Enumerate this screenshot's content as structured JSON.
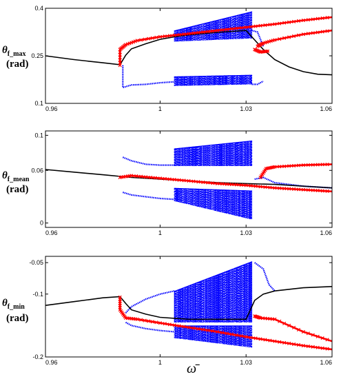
{
  "colors": {
    "stable": "#000000",
    "chaotic": "#0000ff",
    "alternate": "#ff0000",
    "frame": "#000000",
    "background": "#ffffff"
  },
  "figure": {
    "xlabel": "ω̄"
  },
  "chart_data": [
    {
      "type": "scatter",
      "ylabel": {
        "symbol": "θ",
        "subscript": "f_max",
        "unit": "(rad)"
      },
      "xlim": [
        0.96,
        1.06
      ],
      "ylim": [
        0.1,
        0.4
      ],
      "xticks": [
        0.96,
        1,
        1.03,
        1.06
      ],
      "xtick_labels": [
        "0.96",
        "1",
        "1.03",
        "1.06"
      ],
      "yticks": [
        0.1,
        0.25,
        0.4
      ],
      "ytick_labels": [
        "0.1",
        "0.25",
        "0.4"
      ],
      "series": [
        {
          "role": "stable",
          "points": [
            [
              0.96,
              0.25
            ],
            [
              0.97,
              0.238
            ],
            [
              0.98,
              0.228
            ],
            [
              0.986,
              0.222
            ],
            [
              0.988,
              0.252
            ],
            [
              0.99,
              0.272
            ],
            [
              0.995,
              0.288
            ],
            [
              1.0,
              0.302
            ],
            [
              1.005,
              0.31
            ],
            [
              1.01,
              0.316
            ],
            [
              1.02,
              0.324
            ],
            [
              1.03,
              0.33
            ],
            [
              1.033,
              0.3
            ],
            [
              1.036,
              0.27
            ],
            [
              1.04,
              0.238
            ],
            [
              1.045,
              0.215
            ],
            [
              1.05,
              0.2
            ],
            [
              1.055,
              0.192
            ],
            [
              1.06,
              0.19
            ]
          ]
        },
        {
          "role": "chaotic_band_upper",
          "x_range": [
            1.005,
            1.032
          ],
          "y_bottom": [
            0.295,
            0.305
          ],
          "y_top": [
            0.33,
            0.39
          ]
        },
        {
          "role": "chaotic_band_lower",
          "x_range": [
            1.005,
            1.032
          ],
          "y_bottom": [
            0.155,
            0.16
          ],
          "y_top": [
            0.185,
            0.19
          ]
        },
        {
          "role": "chaotic_edge",
          "points": [
            [
              0.987,
              0.22
            ],
            [
              0.987,
              0.15
            ],
            [
              0.99,
              0.158
            ],
            [
              0.995,
              0.16
            ],
            [
              1.0,
              0.165
            ],
            [
              1.005,
              0.168
            ]
          ]
        },
        {
          "role": "chaotic_edge",
          "points": [
            [
              1.032,
              0.16
            ],
            [
              1.034,
              0.16
            ],
            [
              1.036,
              0.17
            ]
          ]
        },
        {
          "role": "chaotic_edge",
          "points": [
            [
              1.032,
              0.33
            ],
            [
              1.034,
              0.325
            ],
            [
              1.036,
              0.28
            ]
          ]
        },
        {
          "role": "alternate",
          "points": [
            [
              0.986,
              0.22
            ],
            [
              0.986,
              0.27
            ],
            [
              0.988,
              0.285
            ],
            [
              0.992,
              0.298
            ],
            [
              1.0,
              0.31
            ],
            [
              1.01,
              0.32
            ],
            [
              1.02,
              0.33
            ],
            [
              1.03,
              0.34
            ],
            [
              1.04,
              0.35
            ],
            [
              1.05,
              0.362
            ],
            [
              1.06,
              0.372
            ]
          ]
        },
        {
          "role": "alternate",
          "points": [
            [
              1.033,
              0.27
            ],
            [
              1.035,
              0.262
            ],
            [
              1.038,
              0.265
            ]
          ]
        },
        {
          "role": "alternate",
          "points": [
            [
              1.034,
              0.28
            ],
            [
              1.036,
              0.29
            ],
            [
              1.04,
              0.3
            ],
            [
              1.05,
              0.318
            ],
            [
              1.06,
              0.33
            ]
          ]
        }
      ]
    },
    {
      "type": "scatter",
      "ylabel": {
        "symbol": "θ",
        "subscript": "f_mean",
        "unit": "(rad)"
      },
      "xlim": [
        0.96,
        1.06
      ],
      "ylim": [
        -0.005,
        0.105
      ],
      "xticks": [
        0.96,
        1,
        1.03,
        1.06
      ],
      "xtick_labels": [
        "0.96",
        "1",
        "1.03",
        "1.06"
      ],
      "yticks": [
        0,
        0.06,
        0.1
      ],
      "ytick_labels": [
        "0",
        "0.06",
        "0.1"
      ],
      "series": [
        {
          "role": "stable",
          "points": [
            [
              0.96,
              0.061
            ],
            [
              0.97,
              0.058
            ],
            [
              0.98,
              0.055
            ],
            [
              0.99,
              0.052
            ],
            [
              1.0,
              0.05
            ],
            [
              1.01,
              0.048
            ],
            [
              1.02,
              0.046
            ],
            [
              1.03,
              0.045
            ],
            [
              1.04,
              0.044
            ],
            [
              1.05,
              0.042
            ],
            [
              1.06,
              0.04
            ]
          ]
        },
        {
          "role": "chaotic_band_upper",
          "x_range": [
            1.005,
            1.032
          ],
          "y_bottom": [
            0.065,
            0.065
          ],
          "y_top": [
            0.085,
            0.094
          ]
        },
        {
          "role": "chaotic_band_lower",
          "x_range": [
            1.005,
            1.032
          ],
          "y_bottom": [
            0.025,
            0.004
          ],
          "y_top": [
            0.04,
            0.037
          ]
        },
        {
          "role": "chaotic_edge",
          "points": [
            [
              0.987,
              0.075
            ],
            [
              0.99,
              0.071
            ],
            [
              0.995,
              0.067
            ],
            [
              1.0,
              0.066
            ],
            [
              1.005,
              0.066
            ]
          ]
        },
        {
          "role": "chaotic_edge",
          "points": [
            [
              0.987,
              0.035
            ],
            [
              0.99,
              0.032
            ],
            [
              0.995,
              0.03
            ],
            [
              1.0,
              0.028
            ],
            [
              1.005,
              0.027
            ]
          ]
        },
        {
          "role": "chaotic_edge",
          "points": [
            [
              1.033,
              0.05
            ],
            [
              1.036,
              0.052
            ],
            [
              1.04,
              0.046
            ],
            [
              1.05,
              0.042
            ],
            [
              1.06,
              0.04
            ]
          ]
        },
        {
          "role": "alternate",
          "points": [
            [
              0.986,
              0.052
            ],
            [
              0.99,
              0.054
            ],
            [
              1.0,
              0.051
            ],
            [
              1.01,
              0.048
            ],
            [
              1.02,
              0.045
            ],
            [
              1.03,
              0.043
            ],
            [
              1.04,
              0.04
            ],
            [
              1.05,
              0.038
            ],
            [
              1.06,
              0.036
            ]
          ]
        },
        {
          "role": "alternate",
          "points": [
            [
              1.035,
              0.052
            ],
            [
              1.037,
              0.062
            ],
            [
              1.04,
              0.064
            ],
            [
              1.05,
              0.066
            ],
            [
              1.06,
              0.067
            ]
          ]
        }
      ]
    },
    {
      "type": "scatter",
      "ylabel": {
        "symbol": "θ",
        "subscript": "f_min",
        "unit": "(rad)"
      },
      "xlim": [
        0.96,
        1.06
      ],
      "ylim": [
        -0.2,
        -0.04
      ],
      "xticks": [
        0.96,
        1,
        1.03,
        1.06
      ],
      "xtick_labels": [
        "0.96",
        "1",
        "1.03",
        "1.06"
      ],
      "yticks": [
        -0.05,
        -0.1,
        -0.2
      ],
      "ytick_labels": [
        "-0.05",
        "-0.1",
        "-0.2"
      ],
      "series": [
        {
          "role": "stable",
          "points": [
            [
              0.96,
              -0.118
            ],
            [
              0.97,
              -0.112
            ],
            [
              0.98,
              -0.106
            ],
            [
              0.986,
              -0.104
            ],
            [
              0.988,
              -0.115
            ],
            [
              0.99,
              -0.125
            ],
            [
              0.995,
              -0.132
            ],
            [
              1.0,
              -0.137
            ],
            [
              1.01,
              -0.14
            ],
            [
              1.03,
              -0.14
            ],
            [
              1.033,
              -0.11
            ],
            [
              1.036,
              -0.1
            ],
            [
              1.04,
              -0.095
            ],
            [
              1.05,
              -0.09
            ],
            [
              1.06,
              -0.088
            ]
          ]
        },
        {
          "role": "chaotic_band_upper",
          "x_range": [
            1.005,
            1.032
          ],
          "y_bottom": [
            -0.145,
            -0.145
          ],
          "y_top": [
            -0.095,
            -0.048
          ]
        },
        {
          "role": "chaotic_band_lower",
          "x_range": [
            1.005,
            1.032
          ],
          "y_bottom": [
            -0.17,
            -0.185
          ],
          "y_top": [
            -0.15,
            -0.15
          ]
        },
        {
          "role": "chaotic_edge",
          "points": [
            [
              0.988,
              -0.13
            ],
            [
              0.99,
              -0.12
            ],
            [
              0.995,
              -0.108
            ],
            [
              1.0,
              -0.1
            ],
            [
              1.005,
              -0.095
            ]
          ]
        },
        {
          "role": "chaotic_edge",
          "points": [
            [
              0.988,
              -0.145
            ],
            [
              0.99,
              -0.15
            ],
            [
              0.995,
              -0.155
            ],
            [
              1.0,
              -0.158
            ],
            [
              1.005,
              -0.16
            ]
          ]
        },
        {
          "role": "chaotic_edge",
          "points": [
            [
              1.033,
              -0.05
            ],
            [
              1.036,
              -0.06
            ],
            [
              1.038,
              -0.085
            ],
            [
              1.04,
              -0.095
            ]
          ]
        },
        {
          "role": "alternate",
          "points": [
            [
              0.986,
              -0.105
            ],
            [
              0.986,
              -0.125
            ],
            [
              0.988,
              -0.138
            ],
            [
              0.992,
              -0.14
            ],
            [
              1.0,
              -0.146
            ],
            [
              1.01,
              -0.153
            ],
            [
              1.02,
              -0.16
            ],
            [
              1.03,
              -0.168
            ],
            [
              1.04,
              -0.175
            ],
            [
              1.05,
              -0.182
            ],
            [
              1.06,
              -0.188
            ]
          ]
        },
        {
          "role": "alternate",
          "points": [
            [
              1.033,
              -0.135
            ],
            [
              1.035,
              -0.138
            ],
            [
              1.04,
              -0.14
            ],
            [
              1.05,
              -0.16
            ],
            [
              1.06,
              -0.175
            ]
          ]
        }
      ]
    }
  ]
}
